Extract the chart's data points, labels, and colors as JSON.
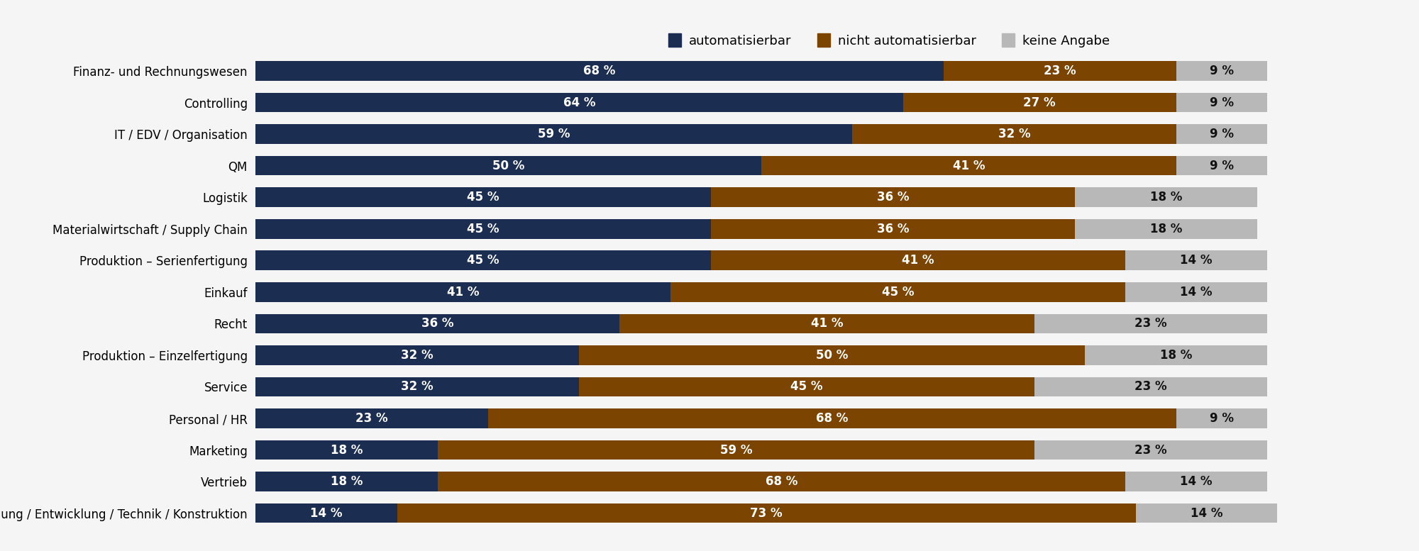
{
  "categories": [
    "Finanz- und Rechnungswesen",
    "Controlling",
    "IT / EDV / Organisation",
    "QM",
    "Logistik",
    "Materialwirtschaft / Supply Chain",
    "Produktion – Serienfertigung",
    "Einkauf",
    "Recht",
    "Produktion – Einzelfertigung",
    "Service",
    "Personal / HR",
    "Marketing",
    "Vertrieb",
    "Forschung / Entwicklung / Technik / Konstruktion"
  ],
  "automatisierbar": [
    68,
    64,
    59,
    50,
    45,
    45,
    45,
    41,
    36,
    32,
    32,
    23,
    18,
    18,
    14
  ],
  "nicht_automatisierbar": [
    23,
    27,
    32,
    41,
    36,
    36,
    41,
    45,
    41,
    50,
    45,
    68,
    59,
    68,
    73
  ],
  "keine_angabe": [
    9,
    9,
    9,
    9,
    18,
    18,
    14,
    14,
    23,
    18,
    23,
    9,
    23,
    14,
    14
  ],
  "color_auto": "#1c2d52",
  "color_nicht": "#7b4400",
  "color_keine": "#b8b8b8",
  "legend_labels": [
    "automatisierbar",
    "nicht automatisierbar",
    "keine Angabe"
  ],
  "bar_height": 0.62,
  "background_color": "#f5f5f5",
  "text_color_white": "#ffffff",
  "text_color_dark": "#111111",
  "label_fontsize": 12,
  "tick_fontsize": 12,
  "legend_fontsize": 13,
  "xlim_max": 108
}
